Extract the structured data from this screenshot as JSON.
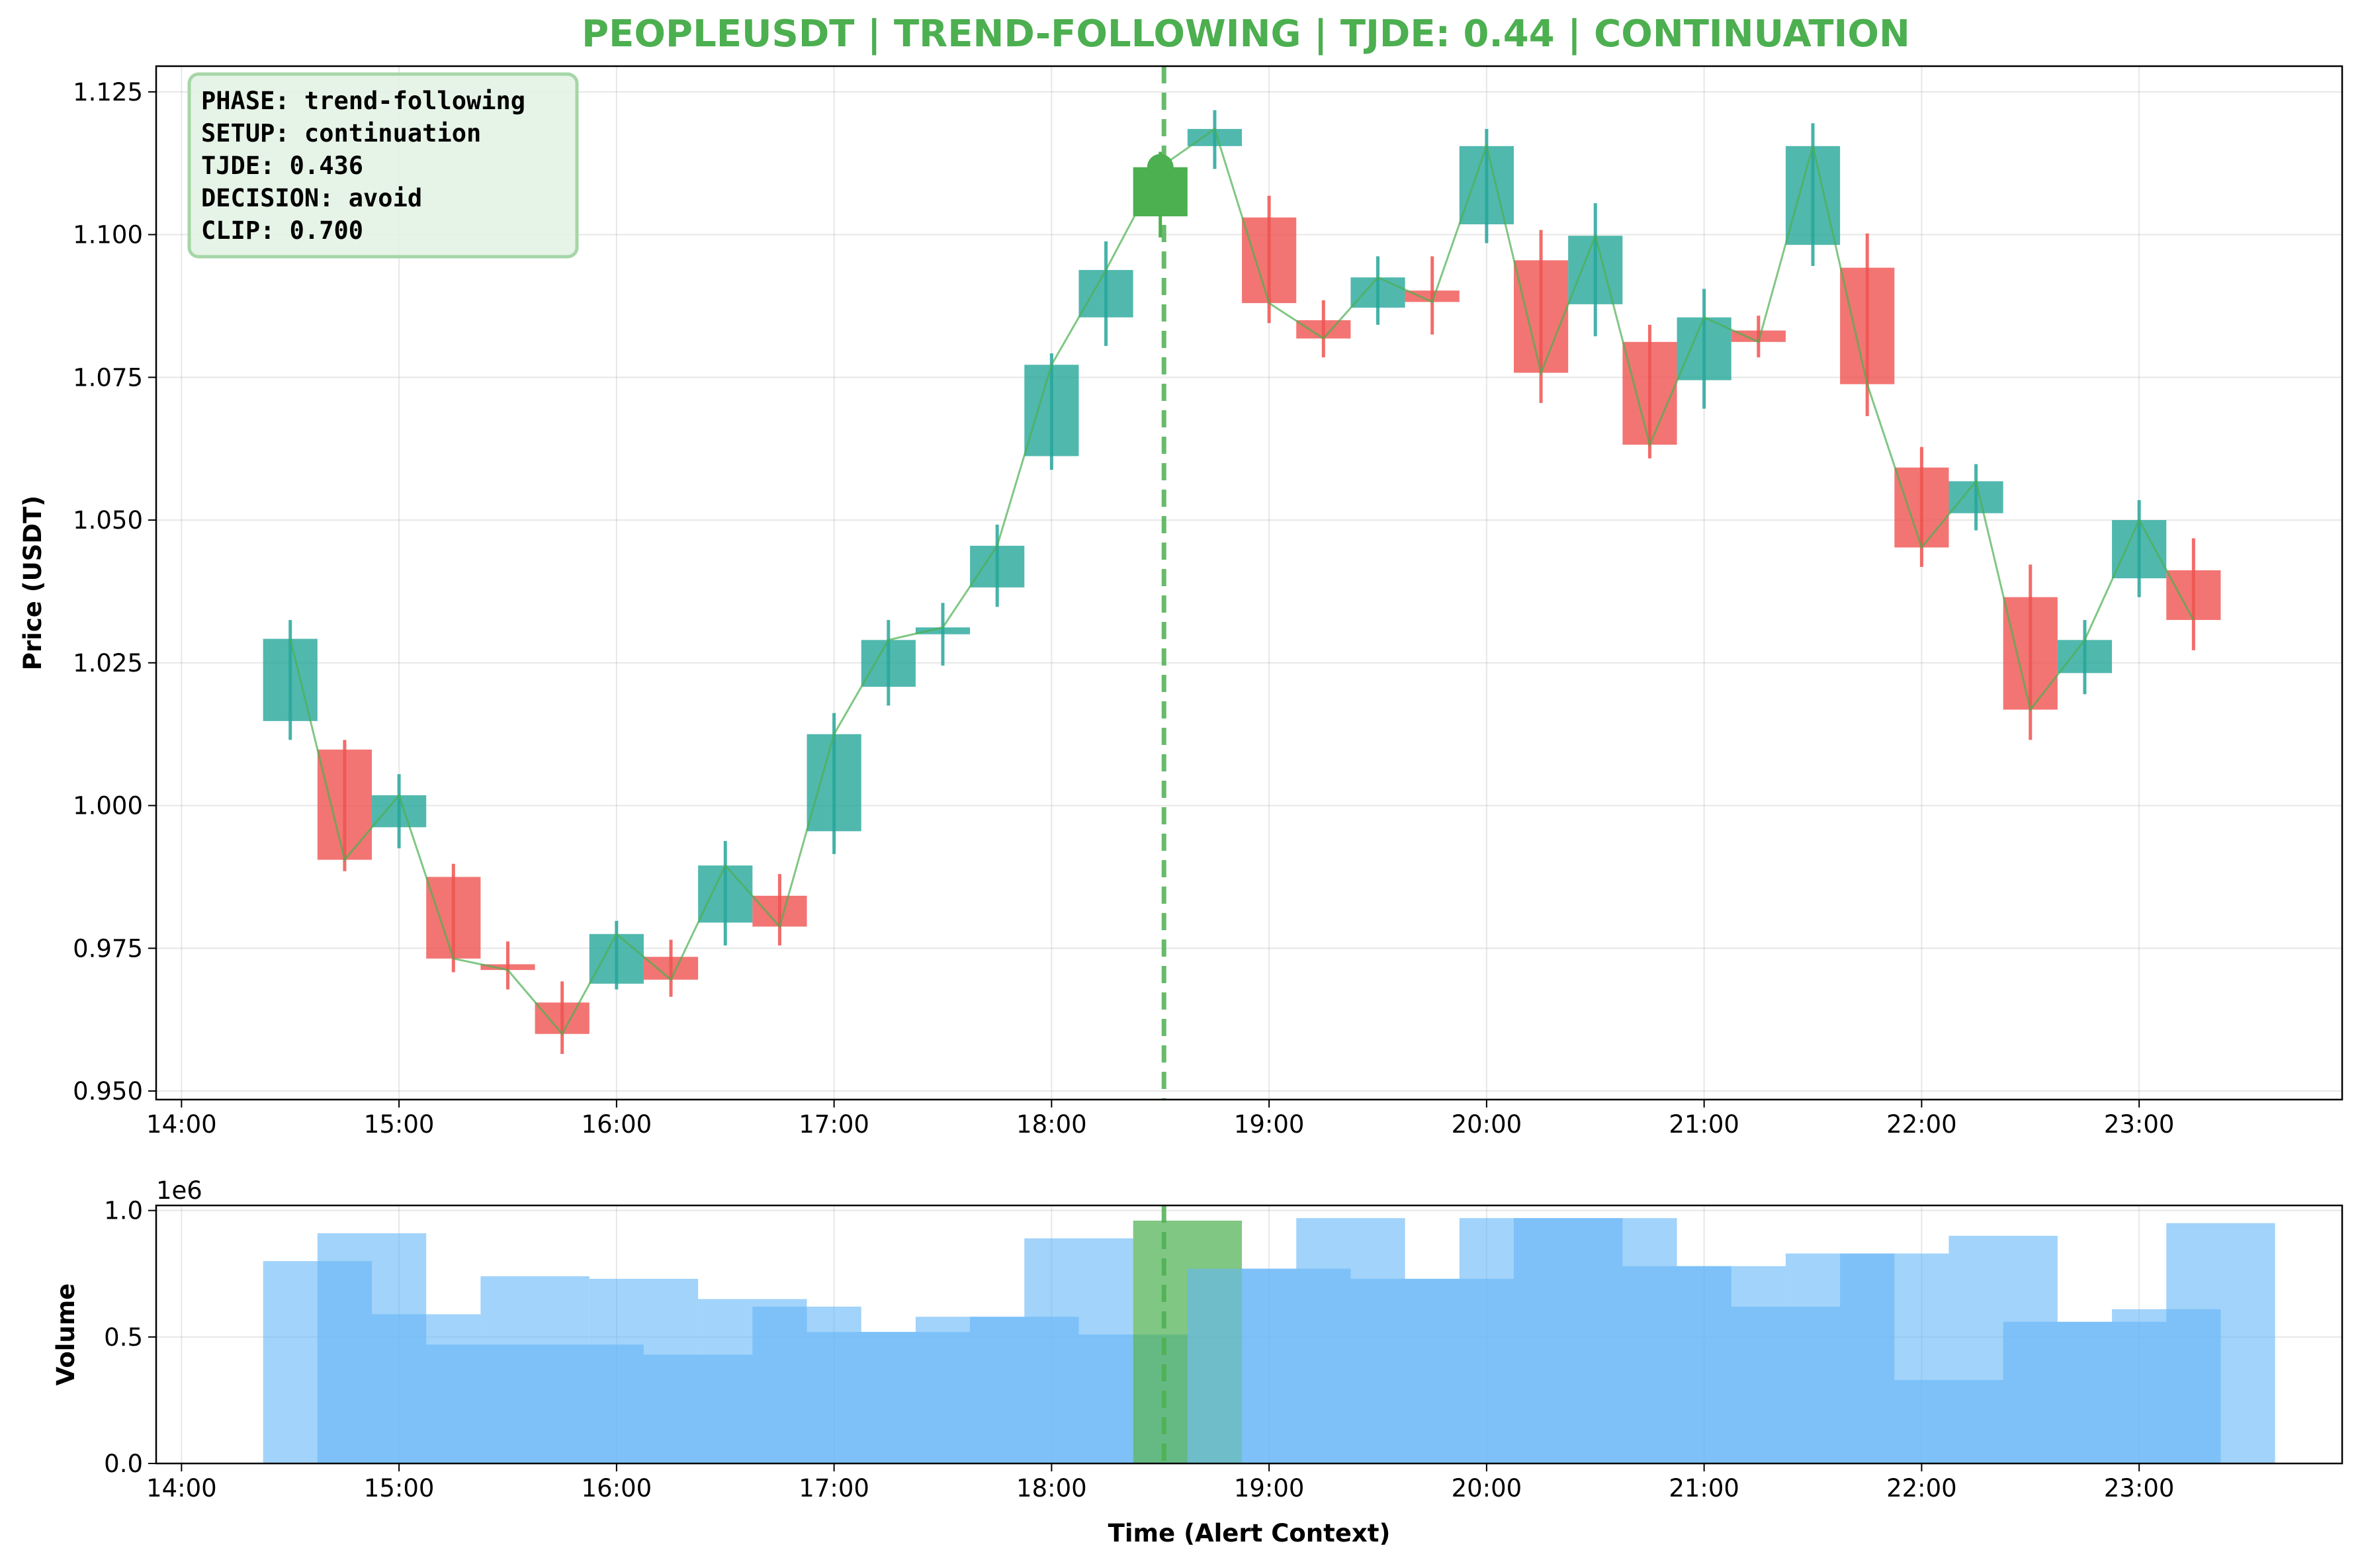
{
  "chart_data": {
    "type": "candlestick",
    "title": "PEOPLEUSDT | TREND-FOLLOWING | TJDE: 0.44 | CONTINUATION",
    "colors": {
      "title": "#4caf50",
      "up": "#26a69a",
      "down": "#ef5350",
      "alert": "#4caf50",
      "trend_line": "#4caf50",
      "volume": "#64b5f6",
      "volume_alert": "#4caf50",
      "info_box_fill": "#e3f2e4",
      "info_box_edge": "#a5d6a7"
    },
    "info_box": [
      "PHASE: trend-following",
      "SETUP: continuation",
      "TJDE: 0.436",
      "DECISION: avoid",
      "CLIP: 0.700"
    ],
    "price_panel": {
      "ylabel": "Price (USDT)",
      "ylim": [
        0.9485,
        1.1295
      ],
      "yticks": [
        0.95,
        0.975,
        1.0,
        1.025,
        1.05,
        1.075,
        1.1,
        1.125
      ],
      "ytick_labels": [
        "0.950",
        "0.975",
        "1.000",
        "1.025",
        "1.050",
        "1.075",
        "1.100",
        "1.125"
      ],
      "grid": true
    },
    "volume_panel": {
      "ylabel": "Volume",
      "xlabel": "Time (Alert Context)",
      "scale_label": "1e6",
      "ylim": [
        0,
        1.02
      ],
      "yticks": [
        0.0,
        0.5,
        1.0
      ],
      "ytick_labels": [
        "0.0",
        "0.5",
        "1.0"
      ],
      "grid": true
    },
    "x_axis": {
      "xlim": [
        "13:53",
        "23:56"
      ],
      "ticks": [
        "14:00",
        "15:00",
        "16:00",
        "17:00",
        "18:00",
        "19:00",
        "20:00",
        "21:00",
        "22:00",
        "23:00"
      ],
      "alert_time": "18:31"
    },
    "candles": [
      {
        "t": "14:30",
        "o": 1.0148,
        "h": 1.0325,
        "l": 1.0115,
        "c": 1.0292
      },
      {
        "t": "14:45",
        "o": 1.0098,
        "h": 1.0115,
        "l": 0.9885,
        "c": 0.9905
      },
      {
        "t": "15:00",
        "o": 0.9962,
        "h": 1.0055,
        "l": 0.9925,
        "c": 1.0018
      },
      {
        "t": "15:15",
        "o": 0.9875,
        "h": 0.9898,
        "l": 0.9708,
        "c": 0.9732
      },
      {
        "t": "15:30",
        "o": 0.9722,
        "h": 0.9762,
        "l": 0.9678,
        "c": 0.9712
      },
      {
        "t": "15:45",
        "o": 0.9655,
        "h": 0.9692,
        "l": 0.9565,
        "c": 0.96
      },
      {
        "t": "16:00",
        "o": 0.9688,
        "h": 0.9798,
        "l": 0.9678,
        "c": 0.9775
      },
      {
        "t": "16:15",
        "o": 0.9735,
        "h": 0.9765,
        "l": 0.9665,
        "c": 0.9695
      },
      {
        "t": "16:30",
        "o": 0.9795,
        "h": 0.9938,
        "l": 0.9755,
        "c": 0.9895
      },
      {
        "t": "16:45",
        "o": 0.9842,
        "h": 0.988,
        "l": 0.9755,
        "c": 0.9788
      },
      {
        "t": "17:00",
        "o": 0.9955,
        "h": 1.0162,
        "l": 0.9915,
        "c": 1.0125
      },
      {
        "t": "17:15",
        "o": 1.0208,
        "h": 1.0325,
        "l": 1.0175,
        "c": 1.029
      },
      {
        "t": "17:30",
        "o": 1.03,
        "h": 1.0355,
        "l": 1.0245,
        "c": 1.0312
      },
      {
        "t": "17:45",
        "o": 1.0382,
        "h": 1.0492,
        "l": 1.0348,
        "c": 1.0455
      },
      {
        "t": "18:00",
        "o": 1.0612,
        "h": 1.0792,
        "l": 1.0588,
        "c": 1.0772
      },
      {
        "t": "18:15",
        "o": 1.0855,
        "h": 1.0988,
        "l": 1.0805,
        "c": 1.0938
      },
      {
        "t": "18:30",
        "o": 1.1032,
        "h": 1.1145,
        "l": 1.0995,
        "c": 1.1118,
        "alert": true
      },
      {
        "t": "18:45",
        "o": 1.1155,
        "h": 1.1218,
        "l": 1.1115,
        "c": 1.1185
      },
      {
        "t": "19:00",
        "o": 1.103,
        "h": 1.1068,
        "l": 1.0845,
        "c": 1.088
      },
      {
        "t": "19:15",
        "o": 1.085,
        "h": 1.0885,
        "l": 1.0785,
        "c": 1.0818
      },
      {
        "t": "19:30",
        "o": 1.0872,
        "h": 1.0962,
        "l": 1.0842,
        "c": 1.0925
      },
      {
        "t": "19:45",
        "o": 1.0902,
        "h": 1.0962,
        "l": 1.0825,
        "c": 1.0882
      },
      {
        "t": "20:00",
        "o": 1.1018,
        "h": 1.1185,
        "l": 1.0985,
        "c": 1.1155
      },
      {
        "t": "20:15",
        "o": 1.0955,
        "h": 1.1008,
        "l": 1.0705,
        "c": 1.0758
      },
      {
        "t": "20:30",
        "o": 1.0878,
        "h": 1.1055,
        "l": 1.0822,
        "c": 1.0998
      },
      {
        "t": "20:45",
        "o": 1.0812,
        "h": 1.0842,
        "l": 1.0608,
        "c": 1.0632
      },
      {
        "t": "21:00",
        "o": 1.0745,
        "h": 1.0905,
        "l": 1.0695,
        "c": 1.0855
      },
      {
        "t": "21:15",
        "o": 1.0832,
        "h": 1.0858,
        "l": 1.0785,
        "c": 1.0812
      },
      {
        "t": "21:30",
        "o": 1.0982,
        "h": 1.1195,
        "l": 1.0945,
        "c": 1.1155
      },
      {
        "t": "21:45",
        "o": 1.0942,
        "h": 1.1002,
        "l": 1.0682,
        "c": 1.0738
      },
      {
        "t": "22:00",
        "o": 1.0592,
        "h": 1.0628,
        "l": 1.0418,
        "c": 1.0452
      },
      {
        "t": "22:15",
        "o": 1.0512,
        "h": 1.0598,
        "l": 1.0482,
        "c": 1.0568
      },
      {
        "t": "22:30",
        "o": 1.0365,
        "h": 1.0422,
        "l": 1.0115,
        "c": 1.0168
      },
      {
        "t": "22:45",
        "o": 1.0232,
        "h": 1.0325,
        "l": 1.0195,
        "c": 1.029
      },
      {
        "t": "23:00",
        "o": 1.0398,
        "h": 1.0535,
        "l": 1.0365,
        "c": 1.05
      },
      {
        "t": "23:15",
        "o": 1.0412,
        "h": 1.0468,
        "l": 1.0272,
        "c": 1.0325
      }
    ],
    "volume": [
      {
        "t": "14:30",
        "v": 0.8
      },
      {
        "t": "14:45",
        "v": 0.91
      },
      {
        "t": "15:00",
        "v": 0.59
      },
      {
        "t": "15:15",
        "v": 0.47
      },
      {
        "t": "15:30",
        "v": 0.74
      },
      {
        "t": "15:45",
        "v": 0.47
      },
      {
        "t": "16:00",
        "v": 0.73
      },
      {
        "t": "16:15",
        "v": 0.43
      },
      {
        "t": "16:30",
        "v": 0.65
      },
      {
        "t": "16:45",
        "v": 0.62
      },
      {
        "t": "17:00",
        "v": 0.52
      },
      {
        "t": "17:15",
        "v": 0.52
      },
      {
        "t": "17:30",
        "v": 0.58
      },
      {
        "t": "17:45",
        "v": 0.58
      },
      {
        "t": "18:00",
        "v": 0.89
      },
      {
        "t": "18:15",
        "v": 0.51
      },
      {
        "t": "18:30",
        "v": 0.96,
        "alert": true
      },
      {
        "t": "18:45",
        "v": 0.77
      },
      {
        "t": "19:00",
        "v": 0.77
      },
      {
        "t": "19:15",
        "v": 0.97
      },
      {
        "t": "19:30",
        "v": 0.73
      },
      {
        "t": "19:45",
        "v": 0.73
      },
      {
        "t": "20:00",
        "v": 0.97
      },
      {
        "t": "20:15",
        "v": 0.97
      },
      {
        "t": "20:30",
        "v": 0.97
      },
      {
        "t": "20:45",
        "v": 0.78
      },
      {
        "t": "21:00",
        "v": 0.78
      },
      {
        "t": "21:15",
        "v": 0.62
      },
      {
        "t": "21:30",
        "v": 0.83
      },
      {
        "t": "21:45",
        "v": 0.83
      },
      {
        "t": "22:00",
        "v": 0.33
      },
      {
        "t": "22:15",
        "v": 0.9
      },
      {
        "t": "22:30",
        "v": 0.56
      },
      {
        "t": "22:45",
        "v": 0.56
      },
      {
        "t": "23:00",
        "v": 0.61
      },
      {
        "t": "23:15",
        "v": 0.95
      }
    ]
  }
}
